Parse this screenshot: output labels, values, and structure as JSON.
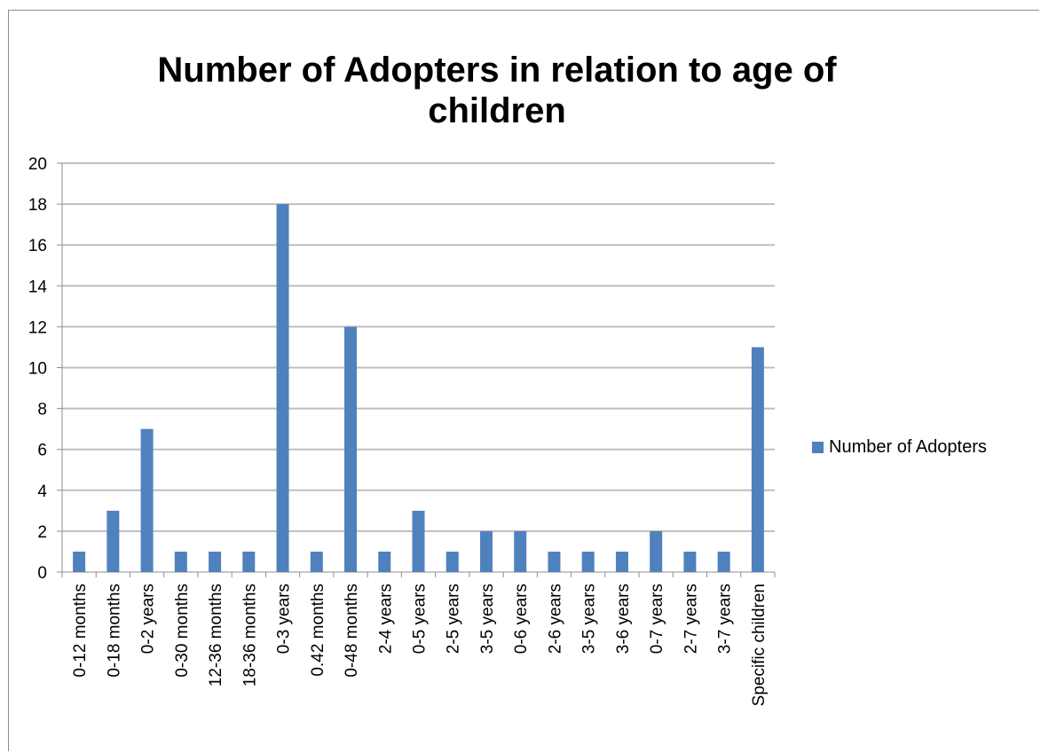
{
  "chart_data": {
    "type": "bar",
    "title": "Number of Adopters in relation to age of children",
    "categories": [
      "0-12 months",
      "0-18 months",
      "0-2 years",
      "0-30 months",
      "12-36 months",
      "18-36 months",
      "0-3 years",
      "0.42 months",
      "0-48 months",
      "2-4 years",
      "0-5 years",
      "2-5 years",
      "3-5 years",
      "0-6 years",
      "2-6 years",
      "3-5 years",
      "3-6 years",
      "0-7 years",
      "2-7 years",
      "3-7 years",
      "Specific children"
    ],
    "series": [
      {
        "name": "Number of Adopters",
        "values": [
          1,
          3,
          7,
          1,
          1,
          1,
          18,
          1,
          12,
          1,
          3,
          1,
          2,
          2,
          1,
          1,
          1,
          2,
          1,
          1,
          11
        ],
        "color": "#4f81bd"
      }
    ],
    "ylim": [
      0,
      20
    ],
    "yticks": [
      0,
      2,
      4,
      6,
      8,
      10,
      12,
      14,
      16,
      18,
      20
    ],
    "xlabel": "",
    "ylabel": "",
    "grid": true,
    "legend_position": "right",
    "gridline_color": "#bfbfbf",
    "axis_color": "#8c8c8c"
  }
}
